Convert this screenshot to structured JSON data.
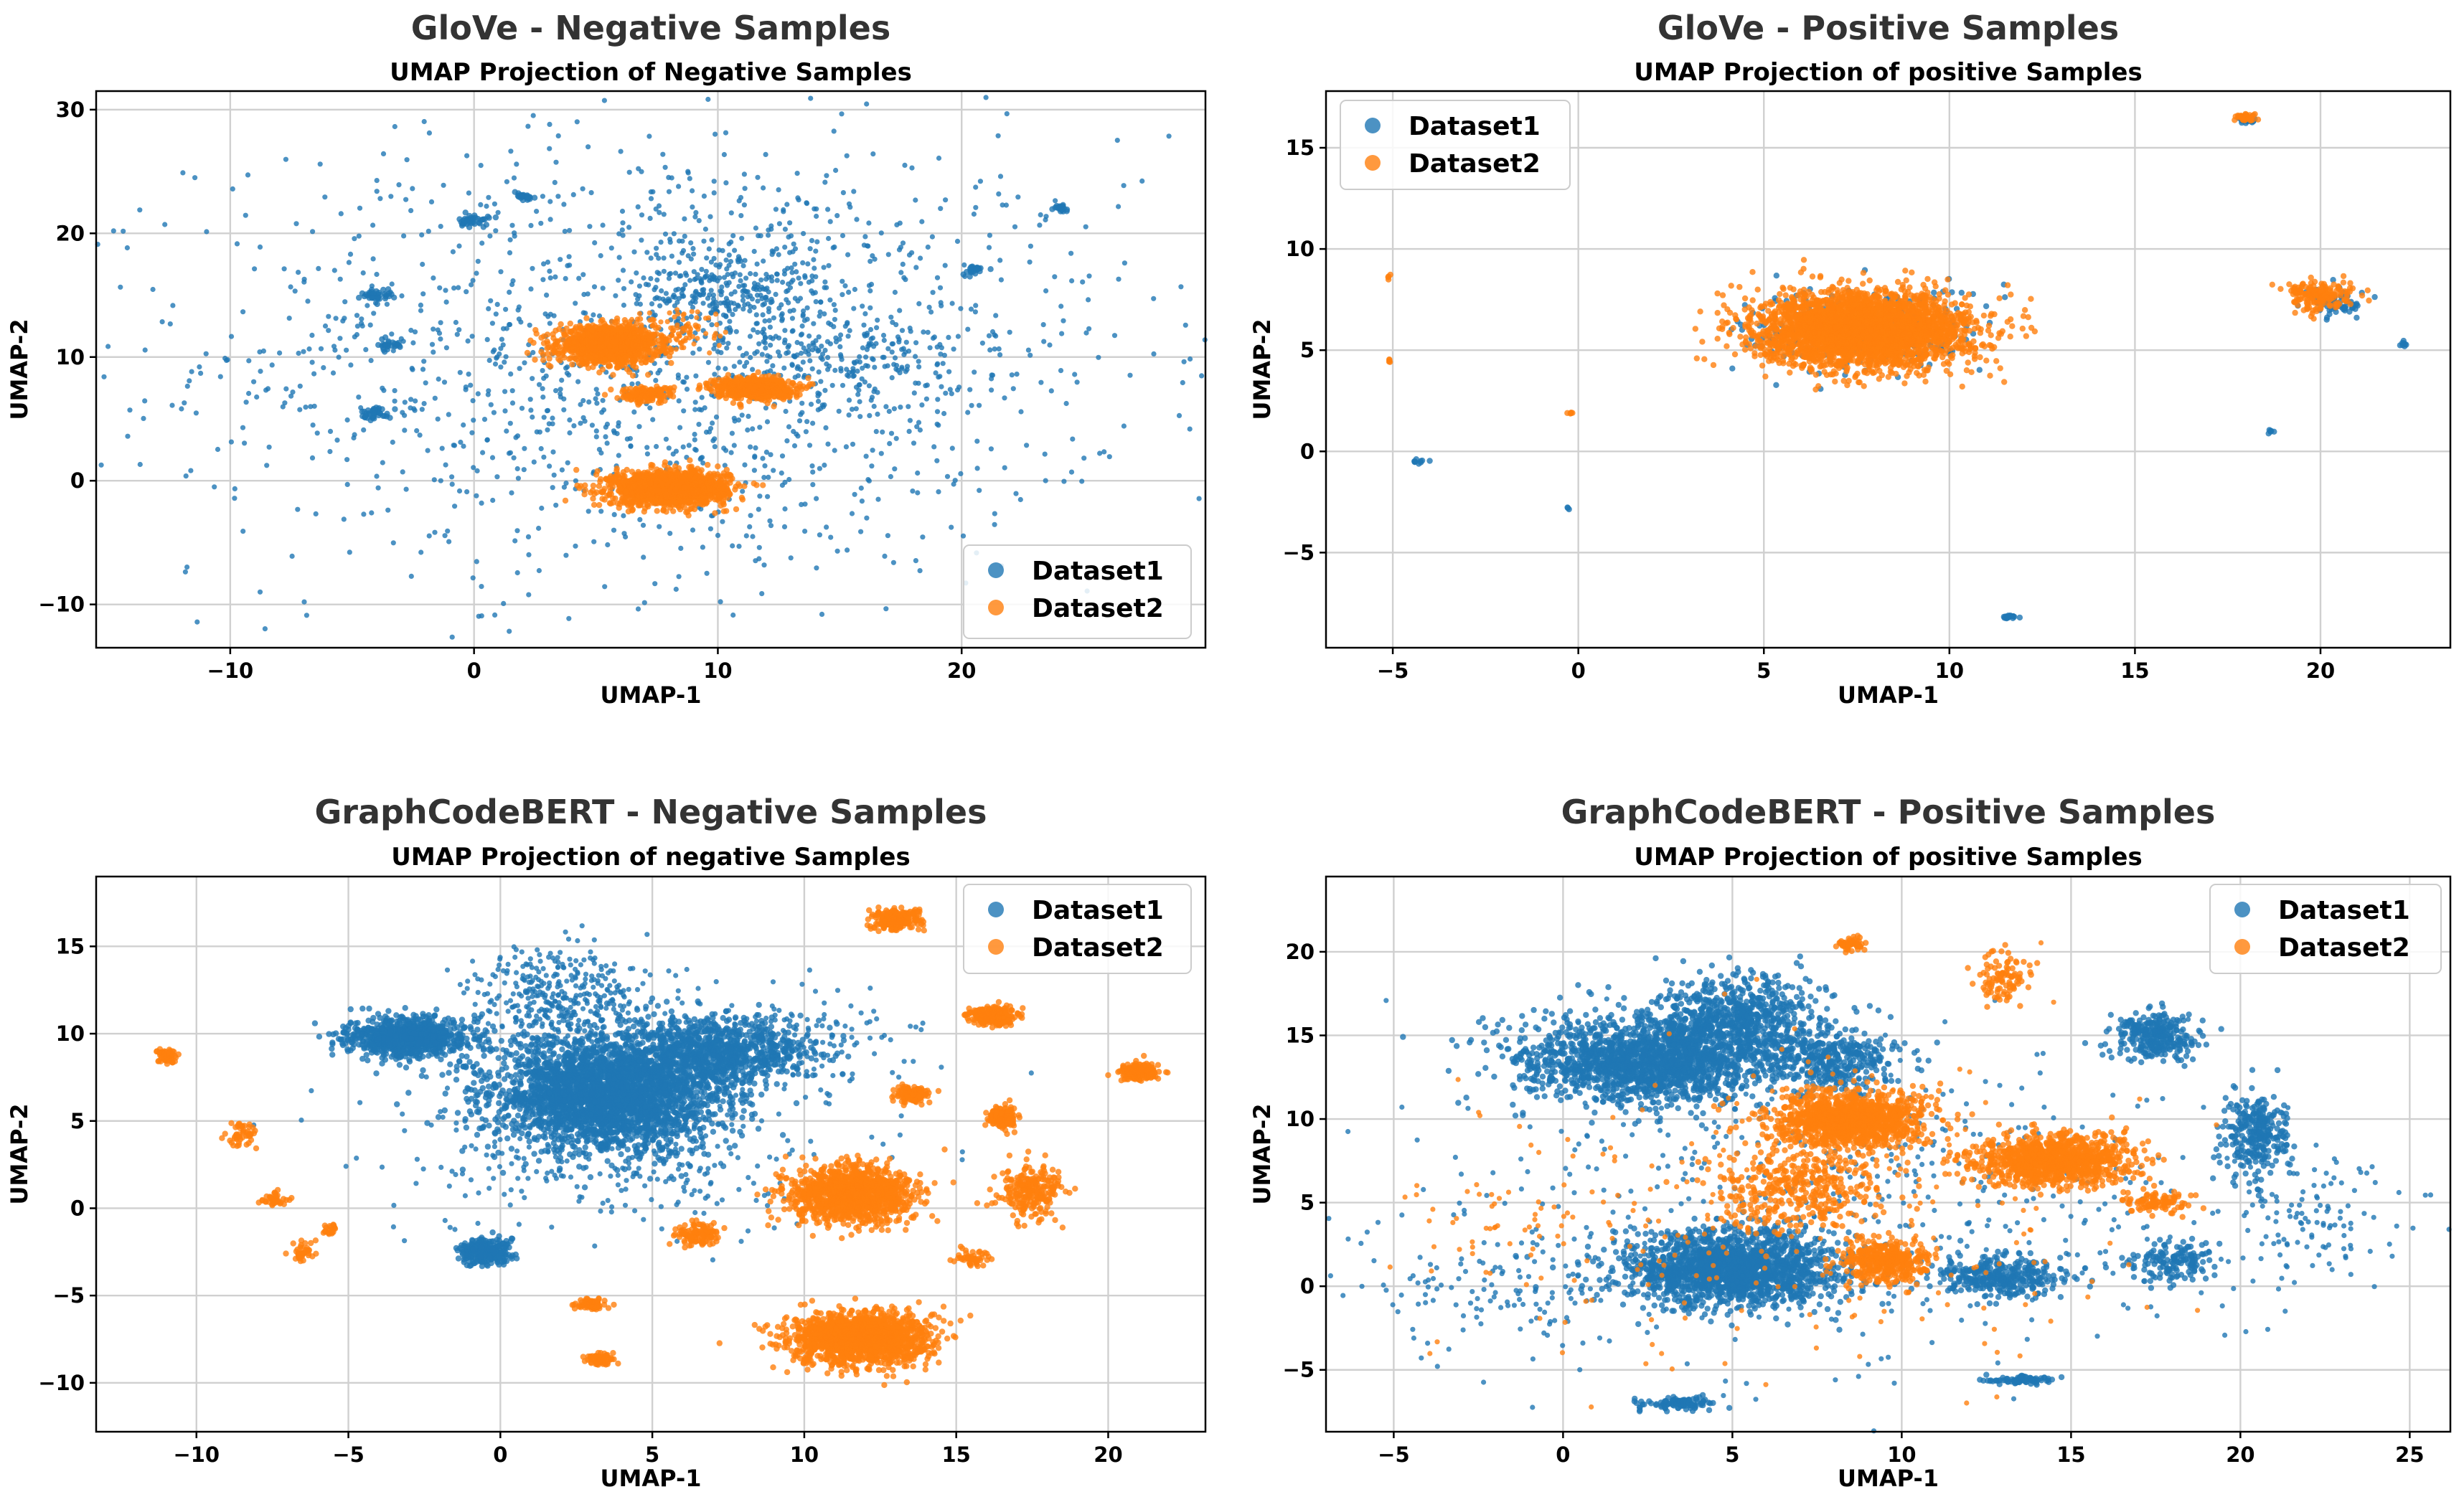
{
  "chart_data": [
    {
      "type": "scatter",
      "suptitle": "GloVe - Negative Samples",
      "title": "UMAP Projection of Negative Samples",
      "xlabel": "UMAP-1",
      "ylabel": "UMAP-2",
      "xlim": [
        -15.5,
        30
      ],
      "ylim": [
        -13.5,
        31.5
      ],
      "xticks": [
        -10,
        0,
        10,
        20
      ],
      "yticks": [
        -10,
        0,
        10,
        20,
        30
      ],
      "grid": true,
      "legend_position": "lower right",
      "series": [
        {
          "name": "Dataset1",
          "color": "#1f77b4",
          "clusters": [
            {
              "x": 8,
              "y": 10,
              "sx": 9.5,
              "sy": 9,
              "n": 1500,
              "dense": false
            },
            {
              "x": 10.5,
              "y": 15.5,
              "sx": 2,
              "sy": 1.8,
              "n": 260,
              "dense": false
            },
            {
              "x": 15,
              "y": 10,
              "sx": 2.5,
              "sy": 2,
              "n": 160,
              "dense": false
            },
            {
              "x": 0,
              "y": 21,
              "sx": 0.5,
              "sy": 0.4,
              "n": 40,
              "dense": true
            },
            {
              "x": -4,
              "y": 15,
              "sx": 0.5,
              "sy": 0.4,
              "n": 40,
              "dense": true
            },
            {
              "x": -4,
              "y": 5.5,
              "sx": 0.5,
              "sy": 0.4,
              "n": 40,
              "dense": true
            },
            {
              "x": 2,
              "y": 23,
              "sx": 0.4,
              "sy": 0.3,
              "n": 25,
              "dense": true
            },
            {
              "x": 20.5,
              "y": 17,
              "sx": 0.4,
              "sy": 0.3,
              "n": 25,
              "dense": true
            },
            {
              "x": 24,
              "y": 22,
              "sx": 0.4,
              "sy": 0.3,
              "n": 20,
              "dense": true
            },
            {
              "x": -3.5,
              "y": 11,
              "sx": 0.5,
              "sy": 0.4,
              "n": 25,
              "dense": true
            }
          ]
        },
        {
          "name": "Dataset2",
          "color": "#ff7f0e",
          "clusters": [
            {
              "x": 5.5,
              "y": 11,
              "sx": 1.6,
              "sy": 1.15,
              "n": 1300,
              "dense": true
            },
            {
              "x": 8,
              "y": -0.6,
              "sx": 1.9,
              "sy": 1.1,
              "n": 1500,
              "dense": true
            },
            {
              "x": 11.5,
              "y": 7.5,
              "sx": 1.3,
              "sy": 0.7,
              "n": 600,
              "dense": true
            },
            {
              "x": 7,
              "y": 7,
              "sx": 0.9,
              "sy": 0.5,
              "n": 150,
              "dense": true
            },
            {
              "x": 8.5,
              "y": 12,
              "sx": 1,
              "sy": 0.9,
              "n": 90,
              "dense": false
            }
          ]
        }
      ]
    },
    {
      "type": "scatter",
      "suptitle": "GloVe - Positive Samples",
      "title": "UMAP Projection of positive Samples",
      "xlabel": "UMAP-1",
      "ylabel": "UMAP-2",
      "xlim": [
        -6.8,
        23.5
      ],
      "ylim": [
        -9.7,
        17.8
      ],
      "xticks": [
        -5,
        0,
        5,
        10,
        15,
        20
      ],
      "yticks": [
        -5,
        0,
        5,
        10,
        15
      ],
      "grid": true,
      "legend_position": "upper left",
      "series": [
        {
          "name": "Dataset1",
          "color": "#1f77b4",
          "clusters": [
            {
              "x": 7.7,
              "y": 6,
              "sx": 2.6,
              "sy": 1.7,
              "n": 300,
              "dense": true
            },
            {
              "x": 18,
              "y": 16.4,
              "sx": 0.2,
              "sy": 0.15,
              "n": 40,
              "dense": true
            },
            {
              "x": 20.5,
              "y": 7.3,
              "sx": 0.6,
              "sy": 0.5,
              "n": 70,
              "dense": true
            },
            {
              "x": 11.6,
              "y": -8.2,
              "sx": 0.15,
              "sy": 0.1,
              "n": 20,
              "dense": true
            },
            {
              "x": -4.3,
              "y": -0.5,
              "sx": 0.15,
              "sy": 0.1,
              "n": 10,
              "dense": true
            },
            {
              "x": -0.3,
              "y": -2.8,
              "sx": 0.04,
              "sy": 0.04,
              "n": 3,
              "dense": true
            },
            {
              "x": 22.2,
              "y": 5.3,
              "sx": 0.1,
              "sy": 0.1,
              "n": 8,
              "dense": true
            },
            {
              "x": 18.7,
              "y": 1,
              "sx": 0.08,
              "sy": 0.1,
              "n": 6,
              "dense": true
            }
          ]
        },
        {
          "name": "Dataset2",
          "color": "#ff7f0e",
          "clusters": [
            {
              "x": 7.7,
              "y": 6,
              "sx": 2.25,
              "sy": 1.45,
              "n": 3200,
              "dense": true
            },
            {
              "x": 18,
              "y": 16.5,
              "sx": 0.2,
              "sy": 0.12,
              "n": 50,
              "dense": true
            },
            {
              "x": 20,
              "y": 7.7,
              "sx": 0.7,
              "sy": 0.6,
              "n": 180,
              "dense": true
            },
            {
              "x": -5.1,
              "y": 8.6,
              "sx": 0.04,
              "sy": 0.1,
              "n": 4,
              "dense": true
            },
            {
              "x": -5.1,
              "y": 4.4,
              "sx": 0.04,
              "sy": 0.1,
              "n": 4,
              "dense": true
            },
            {
              "x": -0.2,
              "y": 1.9,
              "sx": 0.1,
              "sy": 0.05,
              "n": 5,
              "dense": true
            }
          ]
        }
      ]
    },
    {
      "type": "scatter",
      "suptitle": "GraphCodeBERT - Negative Samples",
      "title": "UMAP Projection of negative Samples",
      "xlabel": "UMAP-1",
      "ylabel": "UMAP-2",
      "xlim": [
        -13.3,
        23.2
      ],
      "ylim": [
        -12.8,
        19
      ],
      "xticks": [
        -10,
        -5,
        0,
        5,
        10,
        15,
        20
      ],
      "yticks": [
        -10,
        -5,
        0,
        5,
        10,
        15
      ],
      "grid": true,
      "legend_position": "upper right",
      "series": [
        {
          "name": "Dataset1",
          "color": "#1f77b4",
          "clusters": [
            {
              "x": -3,
              "y": 9.8,
              "sx": 1.6,
              "sy": 0.9,
              "n": 900,
              "dense": true
            },
            {
              "x": 3.5,
              "y": 6.5,
              "sx": 3,
              "sy": 2.5,
              "n": 3000,
              "dense": true
            },
            {
              "x": 7,
              "y": 9,
              "sx": 2.5,
              "sy": 1.5,
              "n": 900,
              "dense": true
            },
            {
              "x": 2,
              "y": 12,
              "sx": 1.5,
              "sy": 1.5,
              "n": 400,
              "dense": false
            },
            {
              "x": -0.5,
              "y": -2.5,
              "sx": 0.7,
              "sy": 0.6,
              "n": 300,
              "dense": true
            },
            {
              "x": 9.5,
              "y": 9.5,
              "sx": 2,
              "sy": 1.5,
              "n": 200,
              "dense": false
            },
            {
              "x": 4,
              "y": 3,
              "sx": 4,
              "sy": 2,
              "n": 300,
              "dense": false
            }
          ]
        },
        {
          "name": "Dataset2",
          "color": "#ff7f0e",
          "clusters": [
            {
              "x": 11.5,
              "y": 0.8,
              "sx": 1.6,
              "sy": 1.3,
              "n": 1300,
              "dense": true
            },
            {
              "x": 11.8,
              "y": -7.5,
              "sx": 1.8,
              "sy": 1.2,
              "n": 1600,
              "dense": true
            },
            {
              "x": 13,
              "y": 16.5,
              "sx": 0.6,
              "sy": 0.5,
              "n": 250,
              "dense": true
            },
            {
              "x": 16.2,
              "y": 11,
              "sx": 0.6,
              "sy": 0.4,
              "n": 250,
              "dense": true
            },
            {
              "x": 21,
              "y": 7.8,
              "sx": 0.5,
              "sy": 0.4,
              "n": 200,
              "dense": true
            },
            {
              "x": 16.5,
              "y": 5.2,
              "sx": 0.4,
              "sy": 0.5,
              "n": 150,
              "dense": true
            },
            {
              "x": 17.5,
              "y": 1,
              "sx": 0.8,
              "sy": 1.2,
              "n": 250,
              "dense": true
            },
            {
              "x": 13.5,
              "y": 6.5,
              "sx": 0.4,
              "sy": 0.4,
              "n": 100,
              "dense": true
            },
            {
              "x": 6.5,
              "y": -1.5,
              "sx": 0.5,
              "sy": 0.5,
              "n": 120,
              "dense": true
            },
            {
              "x": 3,
              "y": -5.5,
              "sx": 0.4,
              "sy": 0.3,
              "n": 70,
              "dense": true
            },
            {
              "x": 3.3,
              "y": -8.6,
              "sx": 0.4,
              "sy": 0.3,
              "n": 60,
              "dense": true
            },
            {
              "x": -11,
              "y": 8.7,
              "sx": 0.3,
              "sy": 0.4,
              "n": 60,
              "dense": true
            },
            {
              "x": -8.5,
              "y": 4.2,
              "sx": 0.4,
              "sy": 0.5,
              "n": 50,
              "dense": true
            },
            {
              "x": -7.5,
              "y": 0.5,
              "sx": 0.5,
              "sy": 0.3,
              "n": 40,
              "dense": true
            },
            {
              "x": -6.5,
              "y": -2.5,
              "sx": 0.3,
              "sy": 0.5,
              "n": 40,
              "dense": true
            },
            {
              "x": -5.6,
              "y": -1.2,
              "sx": 0.2,
              "sy": 0.2,
              "n": 20,
              "dense": true
            },
            {
              "x": 15.5,
              "y": -2.8,
              "sx": 0.5,
              "sy": 0.4,
              "n": 50,
              "dense": true
            }
          ]
        }
      ]
    },
    {
      "type": "scatter",
      "suptitle": "GraphCodeBERT - Positive Samples",
      "title": "UMAP Projection of positive Samples",
      "xlabel": "UMAP-1",
      "ylabel": "UMAP-2",
      "xlim": [
        -7,
        26.2
      ],
      "ylim": [
        -8.7,
        24.5
      ],
      "xticks": [
        -5,
        0,
        5,
        10,
        15,
        20,
        25
      ],
      "yticks": [
        -5,
        0,
        5,
        10,
        15,
        20
      ],
      "grid": true,
      "legend_position": "upper right",
      "series": [
        {
          "name": "Dataset1",
          "color": "#1f77b4",
          "clusters": [
            {
              "x": 2.5,
              "y": 13.5,
              "sx": 3,
              "sy": 2,
              "n": 1800,
              "dense": true
            },
            {
              "x": 5,
              "y": 16,
              "sx": 2,
              "sy": 2,
              "n": 700,
              "dense": true
            },
            {
              "x": 8,
              "y": 13.5,
              "sx": 1.5,
              "sy": 1.5,
              "n": 400,
              "dense": true
            },
            {
              "x": 5,
              "y": 1,
              "sx": 2.5,
              "sy": 1.8,
              "n": 1800,
              "dense": true
            },
            {
              "x": 13,
              "y": 0.5,
              "sx": 1.5,
              "sy": 1,
              "n": 350,
              "dense": true
            },
            {
              "x": 17.5,
              "y": 15,
              "sx": 1,
              "sy": 1.2,
              "n": 300,
              "dense": true
            },
            {
              "x": 20.5,
              "y": 9,
              "sx": 0.8,
              "sy": 2,
              "n": 300,
              "dense": true
            },
            {
              "x": 18,
              "y": 1.5,
              "sx": 1,
              "sy": 1,
              "n": 150,
              "dense": true
            },
            {
              "x": 3.5,
              "y": -7,
              "sx": 1,
              "sy": 0.3,
              "n": 100,
              "dense": true
            },
            {
              "x": 13.5,
              "y": -5.6,
              "sx": 0.8,
              "sy": 0.2,
              "n": 80,
              "dense": true
            },
            {
              "x": 8,
              "y": 5,
              "sx": 6,
              "sy": 5,
              "n": 500,
              "dense": false
            },
            {
              "x": 22,
              "y": 4,
              "sx": 1.5,
              "sy": 2,
              "n": 120,
              "dense": false
            },
            {
              "x": -2,
              "y": 0,
              "sx": 2,
              "sy": 2,
              "n": 120,
              "dense": false
            }
          ]
        },
        {
          "name": "Dataset2",
          "color": "#ff7f0e",
          "clusters": [
            {
              "x": 8.5,
              "y": 10,
              "sx": 1.8,
              "sy": 1.3,
              "n": 1300,
              "dense": true
            },
            {
              "x": 14.5,
              "y": 7.5,
              "sx": 1.8,
              "sy": 1.2,
              "n": 1100,
              "dense": true
            },
            {
              "x": 9.5,
              "y": 1.5,
              "sx": 1,
              "sy": 1,
              "n": 400,
              "dense": true
            },
            {
              "x": 7,
              "y": 6,
              "sx": 2,
              "sy": 2,
              "n": 400,
              "dense": true
            },
            {
              "x": 8.5,
              "y": 20.5,
              "sx": 0.3,
              "sy": 0.3,
              "n": 50,
              "dense": true
            },
            {
              "x": 13,
              "y": 18.5,
              "sx": 0.6,
              "sy": 1.2,
              "n": 100,
              "dense": true
            },
            {
              "x": 17.5,
              "y": 5,
              "sx": 0.8,
              "sy": 0.5,
              "n": 100,
              "dense": true
            },
            {
              "x": 7,
              "y": 5,
              "sx": 5,
              "sy": 5,
              "n": 250,
              "dense": false
            },
            {
              "x": -1,
              "y": 3.5,
              "sx": 2,
              "sy": 1.5,
              "n": 50,
              "dense": false
            }
          ]
        }
      ]
    }
  ]
}
